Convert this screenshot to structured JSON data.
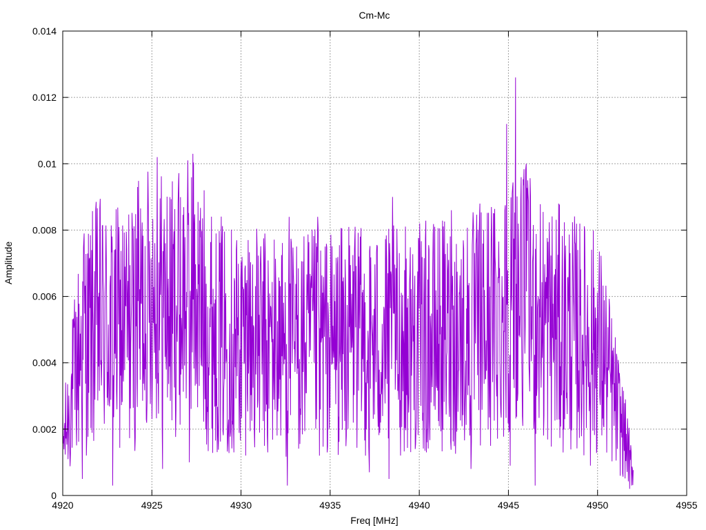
{
  "chart_data": {
    "type": "line",
    "title": "Cm-Mc",
    "xlabel": "Freq [MHz]",
    "ylabel": "Amplitude",
    "xlim": [
      4920,
      4955
    ],
    "ylim": [
      0,
      0.014
    ],
    "x_ticks": [
      "4920",
      "4925",
      "4930",
      "4935",
      "4940",
      "4945",
      "4950",
      "4955"
    ],
    "y_ticks": [
      "0",
      "0.002",
      "0.004",
      "0.006",
      "0.008",
      "0.01",
      "0.012",
      "0.014"
    ],
    "grid": true,
    "legend": "none",
    "series": [
      {
        "color": "#9400d3",
        "x": [
          4920.0,
          4921.0,
          4922.0,
          4923.0,
          4924.0,
          4924.5,
          4925.0,
          4925.5,
          4926.0,
          4926.5,
          4927.0,
          4927.3,
          4927.5,
          4928.0,
          4929.0,
          4930.0,
          4931.0,
          4932.0,
          4933.0,
          4934.0,
          4935.0,
          4936.0,
          4937.0,
          4938.0,
          4939.0,
          4940.0,
          4941.0,
          4942.0,
          4943.0,
          4944.0,
          4944.8,
          4945.2,
          4945.5,
          4946.0,
          4946.5,
          4947.0,
          4948.0,
          4949.0,
          4950.0,
          4950.5,
          4951.0,
          4951.5,
          4952.0
        ],
        "y": [
          0.0015,
          0.0045,
          0.0052,
          0.005,
          0.0052,
          0.0058,
          0.0062,
          0.006,
          0.0056,
          0.0058,
          0.0062,
          0.0065,
          0.006,
          0.0053,
          0.0048,
          0.0047,
          0.0046,
          0.0046,
          0.0045,
          0.0046,
          0.0046,
          0.0047,
          0.0046,
          0.0046,
          0.0047,
          0.0047,
          0.0048,
          0.0048,
          0.0049,
          0.0052,
          0.0056,
          0.006,
          0.0062,
          0.0058,
          0.0055,
          0.0052,
          0.005,
          0.0048,
          0.0046,
          0.0038,
          0.0028,
          0.0018,
          0.0007
        ],
        "peaks": [
          [
            4921.2,
            0.0079
          ],
          [
            4922.9,
            0.0074
          ],
          [
            4924.2,
            0.0093
          ],
          [
            4925.3,
            0.0102
          ],
          [
            4926.5,
            0.0095
          ],
          [
            4927.3,
            0.0103
          ],
          [
            4928.6,
            0.0079
          ],
          [
            4930.4,
            0.0077
          ],
          [
            4932.7,
            0.0084
          ],
          [
            4934.3,
            0.0084
          ],
          [
            4936.4,
            0.0081
          ],
          [
            4938.5,
            0.009
          ],
          [
            4941.8,
            0.0086
          ],
          [
            4943.4,
            0.0088
          ],
          [
            4944.9,
            0.0112
          ],
          [
            4945.4,
            0.0126
          ],
          [
            4946.0,
            0.01
          ],
          [
            4949.6,
            0.0089
          ]
        ],
        "troughs": [
          [
            4921.1,
            0.0005
          ],
          [
            4922.8,
            0.0003
          ],
          [
            4925.6,
            0.0008
          ],
          [
            4927.1,
            0.001
          ],
          [
            4929.6,
            0.0013
          ],
          [
            4931.5,
            0.0013
          ],
          [
            4932.6,
            0.0003
          ],
          [
            4934.4,
            0.0012
          ],
          [
            4937.2,
            0.0007
          ],
          [
            4938.3,
            0.0005
          ],
          [
            4940.4,
            0.0013
          ],
          [
            4942.9,
            0.0008
          ],
          [
            4945.1,
            0.0009
          ],
          [
            4946.5,
            0.0003
          ],
          [
            4949.6,
            0.0009
          ],
          [
            4951.8,
            0.0002
          ]
        ]
      }
    ]
  }
}
